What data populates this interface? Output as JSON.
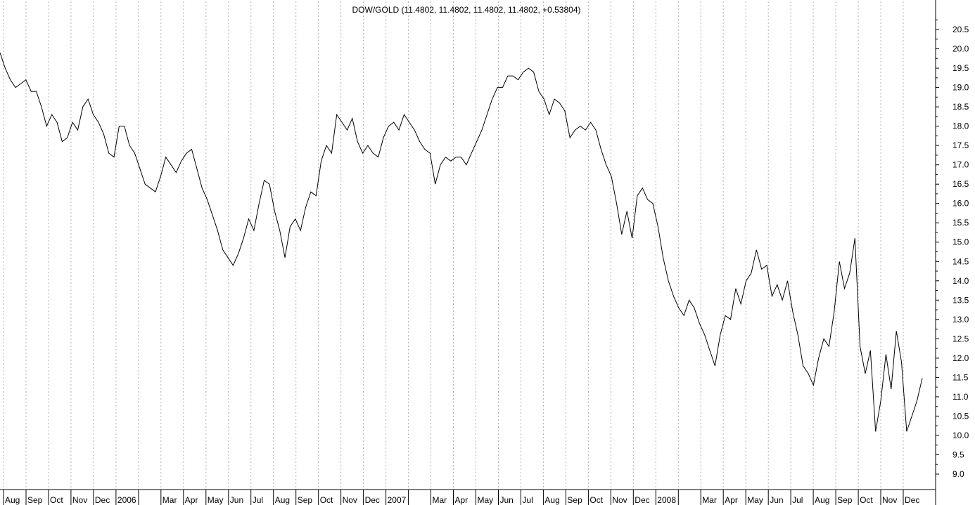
{
  "chart_data": {
    "type": "line",
    "title": "DOW/GOLD (11.4802, 11.4802, 11.4802, 11.4802, +0.53804)",
    "xlabel": "",
    "ylabel": "",
    "ylim": [
      8.6,
      20.9
    ],
    "grid": "vertical-dotted",
    "y_ticks": [
      "9.0",
      "9.5",
      "10.0",
      "10.5",
      "11.0",
      "11.5",
      "12.0",
      "12.5",
      "13.0",
      "13.5",
      "14.0",
      "14.5",
      "15.0",
      "15.5",
      "16.0",
      "16.5",
      "17.0",
      "17.5",
      "18.0",
      "18.5",
      "19.0",
      "19.5",
      "20.0",
      "20.5"
    ],
    "x_labels": [
      "Aug",
      "Sep",
      "Oct",
      "Nov",
      "Dec",
      "2006",
      "Mar",
      "Apr",
      "May",
      "Jun",
      "Jul",
      "Aug",
      "Sep",
      "Oct",
      "Nov",
      "Dec",
      "2007",
      "Mar",
      "Apr",
      "May",
      "Jun",
      "Jul",
      "Aug",
      "Sep",
      "Oct",
      "Nov",
      "Dec",
      "2008",
      "Mar",
      "Apr",
      "May",
      "Jun",
      "Jul",
      "Aug",
      "Sep",
      "Oct",
      "Nov",
      "Dec"
    ],
    "series": [
      {
        "points": [
          [
            "2005-07-29",
            19.9
          ],
          [
            "2005-08-05",
            19.5
          ],
          [
            "2005-08-12",
            19.2
          ],
          [
            "2005-08-19",
            19.0
          ],
          [
            "2005-08-26",
            19.1
          ],
          [
            "2005-09-02",
            19.2
          ],
          [
            "2005-09-09",
            18.9
          ],
          [
            "2005-09-16",
            18.9
          ],
          [
            "2005-09-23",
            18.5
          ],
          [
            "2005-09-30",
            18.0
          ],
          [
            "2005-10-07",
            18.3
          ],
          [
            "2005-10-14",
            18.1
          ],
          [
            "2005-10-21",
            17.6
          ],
          [
            "2005-10-28",
            17.7
          ],
          [
            "2005-11-04",
            18.1
          ],
          [
            "2005-11-11",
            17.9
          ],
          [
            "2005-11-18",
            18.5
          ],
          [
            "2005-11-25",
            18.7
          ],
          [
            "2005-12-02",
            18.3
          ],
          [
            "2005-12-09",
            18.1
          ],
          [
            "2005-12-16",
            17.8
          ],
          [
            "2005-12-23",
            17.3
          ],
          [
            "2005-12-30",
            17.2
          ],
          [
            "2006-01-06",
            18.0
          ],
          [
            "2006-01-13",
            18.0
          ],
          [
            "2006-01-20",
            17.5
          ],
          [
            "2006-01-27",
            17.3
          ],
          [
            "2006-02-03",
            16.9
          ],
          [
            "2006-02-10",
            16.5
          ],
          [
            "2006-02-17",
            16.4
          ],
          [
            "2006-02-24",
            16.3
          ],
          [
            "2006-03-03",
            16.7
          ],
          [
            "2006-03-10",
            17.2
          ],
          [
            "2006-03-17",
            17.0
          ],
          [
            "2006-03-24",
            16.8
          ],
          [
            "2006-03-31",
            17.1
          ],
          [
            "2006-04-07",
            17.3
          ],
          [
            "2006-04-14",
            17.4
          ],
          [
            "2006-04-21",
            16.9
          ],
          [
            "2006-04-28",
            16.4
          ],
          [
            "2006-05-05",
            16.1
          ],
          [
            "2006-05-12",
            15.7
          ],
          [
            "2006-05-19",
            15.3
          ],
          [
            "2006-05-26",
            14.8
          ],
          [
            "2006-06-02",
            14.6
          ],
          [
            "2006-06-09",
            14.4
          ],
          [
            "2006-06-16",
            14.7
          ],
          [
            "2006-06-23",
            15.1
          ],
          [
            "2006-06-30",
            15.6
          ],
          [
            "2006-07-07",
            15.3
          ],
          [
            "2006-07-14",
            16.0
          ],
          [
            "2006-07-21",
            16.6
          ],
          [
            "2006-07-28",
            16.5
          ],
          [
            "2006-08-04",
            15.8
          ],
          [
            "2006-08-11",
            15.3
          ],
          [
            "2006-08-18",
            14.6
          ],
          [
            "2006-08-25",
            15.4
          ],
          [
            "2006-09-01",
            15.6
          ],
          [
            "2006-09-08",
            15.3
          ],
          [
            "2006-09-15",
            15.9
          ],
          [
            "2006-09-22",
            16.3
          ],
          [
            "2006-09-29",
            16.2
          ],
          [
            "2006-10-06",
            17.1
          ],
          [
            "2006-10-13",
            17.5
          ],
          [
            "2006-10-20",
            17.3
          ],
          [
            "2006-10-27",
            18.3
          ],
          [
            "2006-11-03",
            18.1
          ],
          [
            "2006-11-10",
            17.9
          ],
          [
            "2006-11-17",
            18.2
          ],
          [
            "2006-11-24",
            17.6
          ],
          [
            "2006-12-01",
            17.3
          ],
          [
            "2006-12-08",
            17.5
          ],
          [
            "2006-12-15",
            17.3
          ],
          [
            "2006-12-22",
            17.2
          ],
          [
            "2006-12-29",
            17.7
          ],
          [
            "2007-01-05",
            18.0
          ],
          [
            "2007-01-12",
            18.1
          ],
          [
            "2007-01-19",
            17.9
          ],
          [
            "2007-01-26",
            18.3
          ],
          [
            "2007-02-02",
            18.1
          ],
          [
            "2007-02-09",
            17.9
          ],
          [
            "2007-02-16",
            17.6
          ],
          [
            "2007-02-23",
            17.4
          ],
          [
            "2007-03-02",
            17.3
          ],
          [
            "2007-03-09",
            16.5
          ],
          [
            "2007-03-16",
            17.0
          ],
          [
            "2007-03-23",
            17.2
          ],
          [
            "2007-03-30",
            17.1
          ],
          [
            "2007-04-06",
            17.2
          ],
          [
            "2007-04-13",
            17.2
          ],
          [
            "2007-04-20",
            17.0
          ],
          [
            "2007-04-27",
            17.3
          ],
          [
            "2007-05-04",
            17.6
          ],
          [
            "2007-05-11",
            17.9
          ],
          [
            "2007-05-18",
            18.3
          ],
          [
            "2007-05-25",
            18.7
          ],
          [
            "2007-06-01",
            19.0
          ],
          [
            "2007-06-08",
            19.0
          ],
          [
            "2007-06-15",
            19.3
          ],
          [
            "2007-06-22",
            19.3
          ],
          [
            "2007-06-29",
            19.2
          ],
          [
            "2007-07-06",
            19.4
          ],
          [
            "2007-07-13",
            19.5
          ],
          [
            "2007-07-20",
            19.4
          ],
          [
            "2007-07-27",
            18.9
          ],
          [
            "2007-08-03",
            18.7
          ],
          [
            "2007-08-10",
            18.3
          ],
          [
            "2007-08-17",
            18.7
          ],
          [
            "2007-08-24",
            18.6
          ],
          [
            "2007-08-31",
            18.4
          ],
          [
            "2007-09-07",
            17.7
          ],
          [
            "2007-09-14",
            17.9
          ],
          [
            "2007-09-21",
            18.0
          ],
          [
            "2007-09-28",
            17.9
          ],
          [
            "2007-10-05",
            18.1
          ],
          [
            "2007-10-12",
            17.9
          ],
          [
            "2007-10-19",
            17.4
          ],
          [
            "2007-10-26",
            17.0
          ],
          [
            "2007-11-02",
            16.7
          ],
          [
            "2007-11-09",
            16.0
          ],
          [
            "2007-11-16",
            15.2
          ],
          [
            "2007-11-23",
            15.8
          ],
          [
            "2007-11-30",
            15.1
          ],
          [
            "2007-12-07",
            16.2
          ],
          [
            "2007-12-14",
            16.4
          ],
          [
            "2007-12-21",
            16.1
          ],
          [
            "2007-12-28",
            16.0
          ],
          [
            "2008-01-04",
            15.4
          ],
          [
            "2008-01-11",
            14.6
          ],
          [
            "2008-01-18",
            14.0
          ],
          [
            "2008-01-25",
            13.6
          ],
          [
            "2008-02-01",
            13.3
          ],
          [
            "2008-02-08",
            13.1
          ],
          [
            "2008-02-15",
            13.5
          ],
          [
            "2008-02-22",
            13.3
          ],
          [
            "2008-02-29",
            12.9
          ],
          [
            "2008-03-07",
            12.6
          ],
          [
            "2008-03-14",
            12.2
          ],
          [
            "2008-03-21",
            11.8
          ],
          [
            "2008-03-28",
            12.6
          ],
          [
            "2008-04-04",
            13.1
          ],
          [
            "2008-04-11",
            13.0
          ],
          [
            "2008-04-18",
            13.8
          ],
          [
            "2008-04-25",
            13.4
          ],
          [
            "2008-05-02",
            14.0
          ],
          [
            "2008-05-09",
            14.2
          ],
          [
            "2008-05-16",
            14.8
          ],
          [
            "2008-05-23",
            14.3
          ],
          [
            "2008-05-30",
            14.4
          ],
          [
            "2008-06-06",
            13.6
          ],
          [
            "2008-06-13",
            13.9
          ],
          [
            "2008-06-20",
            13.5
          ],
          [
            "2008-06-27",
            14.0
          ],
          [
            "2008-07-04",
            13.2
          ],
          [
            "2008-07-11",
            12.6
          ],
          [
            "2008-07-18",
            11.8
          ],
          [
            "2008-07-25",
            11.6
          ],
          [
            "2008-08-01",
            11.3
          ],
          [
            "2008-08-08",
            12.0
          ],
          [
            "2008-08-15",
            12.5
          ],
          [
            "2008-08-22",
            12.3
          ],
          [
            "2008-08-29",
            13.2
          ],
          [
            "2008-09-05",
            14.5
          ],
          [
            "2008-09-12",
            13.8
          ],
          [
            "2008-09-19",
            14.2
          ],
          [
            "2008-09-26",
            15.1
          ],
          [
            "2008-10-03",
            12.3
          ],
          [
            "2008-10-10",
            11.6
          ],
          [
            "2008-10-17",
            12.2
          ],
          [
            "2008-10-24",
            10.1
          ],
          [
            "2008-10-31",
            10.9
          ],
          [
            "2008-11-07",
            12.1
          ],
          [
            "2008-11-14",
            11.2
          ],
          [
            "2008-11-21",
            12.7
          ],
          [
            "2008-11-28",
            11.9
          ],
          [
            "2008-12-05",
            10.1
          ],
          [
            "2008-12-12",
            10.5
          ],
          [
            "2008-12-19",
            10.9
          ],
          [
            "2008-12-26",
            11.48
          ]
        ]
      }
    ]
  }
}
